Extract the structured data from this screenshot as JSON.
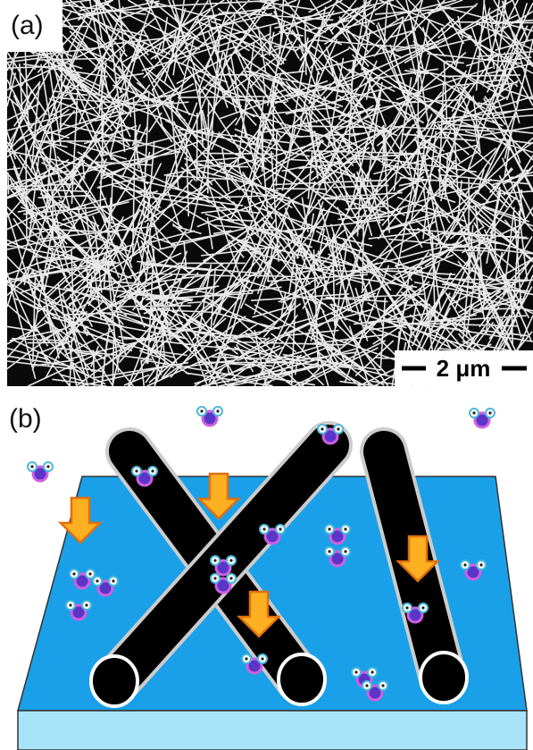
{
  "panels": [
    {
      "label": "(a)",
      "scale_bar": "2 μm"
    },
    {
      "label": "(b)"
    }
  ]
}
